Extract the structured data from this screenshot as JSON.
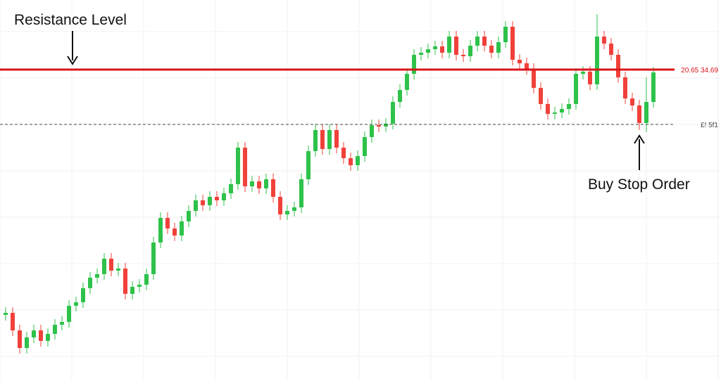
{
  "chart_data": {
    "type": "candlestick",
    "ylim": [
      0,
      540
    ],
    "grid": true,
    "up_color": "#2ec24a",
    "down_color": "#f0413a",
    "open": [
      92,
      95,
      70,
      45,
      60,
      70,
      55,
      65,
      78,
      82,
      105,
      110,
      130,
      145,
      150,
      172,
      155,
      158,
      122,
      132,
      135,
      150,
      195,
      230,
      215,
      205,
      225,
      240,
      255,
      248,
      260,
      255,
      265,
      278,
      330,
      275,
      282,
      272,
      285,
      260,
      235,
      240,
      245,
      285,
      325,
      355,
      328,
      355,
      330,
      315,
      305,
      318,
      345,
      362,
      360,
      364,
      395,
      412,
      435,
      462,
      465,
      470,
      474,
      465,
      488,
      462,
      460,
      475,
      488,
      475,
      465,
      480,
      502,
      455,
      450,
      442,
      415,
      392,
      378,
      380,
      385,
      392,
      435,
      438,
      420,
      488,
      478,
      462,
      430,
      400,
      390,
      365,
      395
    ],
    "high": [
      103,
      103,
      78,
      68,
      78,
      78,
      73,
      86,
      90,
      113,
      118,
      138,
      153,
      158,
      180,
      180,
      166,
      166,
      140,
      143,
      158,
      203,
      238,
      238,
      223,
      233,
      248,
      263,
      263,
      268,
      268,
      273,
      286,
      338,
      338,
      290,
      290,
      293,
      293,
      268,
      248,
      253,
      293,
      333,
      363,
      363,
      363,
      363,
      338,
      323,
      326,
      353,
      370,
      370,
      372,
      403,
      420,
      443,
      470,
      473,
      478,
      482,
      482,
      496,
      496,
      470,
      483,
      496,
      496,
      483,
      488,
      510,
      510,
      463,
      458,
      450,
      423,
      400,
      388,
      393,
      400,
      443,
      446,
      446,
      520,
      496,
      486,
      470,
      438,
      408,
      398,
      430,
      445
    ],
    "low": [
      84,
      62,
      37,
      37,
      52,
      47,
      47,
      57,
      70,
      74,
      97,
      102,
      122,
      137,
      142,
      147,
      147,
      114,
      114,
      124,
      127,
      142,
      187,
      207,
      197,
      197,
      217,
      232,
      240,
      240,
      247,
      247,
      257,
      270,
      267,
      267,
      264,
      264,
      252,
      227,
      227,
      232,
      237,
      277,
      317,
      320,
      320,
      322,
      307,
      297,
      297,
      310,
      337,
      352,
      352,
      356,
      387,
      404,
      427,
      454,
      457,
      462,
      457,
      457,
      454,
      452,
      452,
      467,
      467,
      457,
      457,
      472,
      447,
      442,
      434,
      407,
      384,
      370,
      370,
      372,
      377,
      384,
      427,
      412,
      412,
      470,
      454,
      422,
      392,
      382,
      355,
      352,
      387
    ],
    "close": [
      95,
      70,
      45,
      60,
      70,
      55,
      65,
      78,
      82,
      105,
      110,
      130,
      145,
      150,
      172,
      155,
      158,
      122,
      132,
      135,
      150,
      195,
      230,
      215,
      205,
      225,
      240,
      255,
      248,
      260,
      255,
      265,
      278,
      330,
      275,
      282,
      272,
      285,
      260,
      235,
      240,
      245,
      285,
      325,
      355,
      328,
      355,
      330,
      315,
      305,
      318,
      345,
      362,
      360,
      364,
      395,
      412,
      435,
      462,
      465,
      470,
      474,
      465,
      488,
      462,
      460,
      475,
      488,
      475,
      465,
      480,
      502,
      455,
      450,
      442,
      415,
      392,
      378,
      380,
      385,
      392,
      435,
      438,
      420,
      488,
      478,
      462,
      430,
      400,
      390,
      365,
      395,
      437
    ],
    "levels": [
      {
        "name": "Resistance Level",
        "value": 441,
        "color": "#d9141b",
        "label": "20.65 34.69"
      },
      {
        "name": "Buy Stop Order",
        "value": 363,
        "color": "#444444",
        "label": "£! 5f1"
      }
    ]
  }
}
